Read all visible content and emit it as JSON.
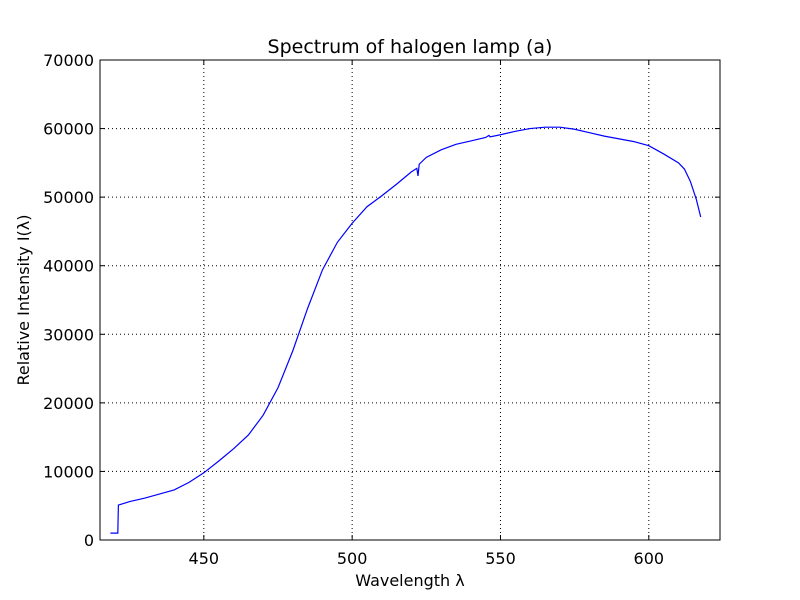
{
  "chart_data": {
    "type": "line",
    "title": "Spectrum of halogen lamp (a)",
    "xlabel": "Wavelength λ",
    "ylabel": "Relative Intensity I(λ)",
    "xlim": [
      415,
      624
    ],
    "ylim": [
      0,
      70000
    ],
    "xticks": [
      450,
      500,
      550,
      600
    ],
    "yticks": [
      0,
      10000,
      20000,
      30000,
      40000,
      50000,
      60000,
      70000
    ],
    "grid": true,
    "series_color": "#0000ff",
    "series": [
      {
        "x": [
          418.5,
          420.5,
          421.0,
          421.2,
          425,
          430,
          435,
          440,
          445,
          450,
          455,
          460,
          465,
          470,
          475,
          480,
          485,
          490,
          495,
          500,
          505,
          510,
          515,
          520,
          521.8,
          522.2,
          522.6,
          525,
          530,
          535,
          540,
          545,
          546.1,
          546.5,
          550,
          555,
          560,
          565,
          570,
          575,
          580,
          585,
          590,
          595,
          600,
          605,
          610,
          612,
          614,
          616,
          617.5
        ],
        "y": [
          1000,
          1000,
          1000,
          5100,
          5600,
          6100,
          6700,
          7300,
          8400,
          9800,
          11500,
          13300,
          15300,
          18200,
          22200,
          27600,
          33800,
          39400,
          43400,
          46200,
          48600,
          50200,
          51900,
          53700,
          54200,
          53100,
          54800,
          55800,
          56900,
          57700,
          58200,
          58700,
          59000,
          58800,
          59100,
          59600,
          60000,
          60200,
          60200,
          59900,
          59400,
          58900,
          58500,
          58100,
          57500,
          56300,
          55000,
          54100,
          52300,
          49700,
          47100
        ]
      }
    ]
  }
}
